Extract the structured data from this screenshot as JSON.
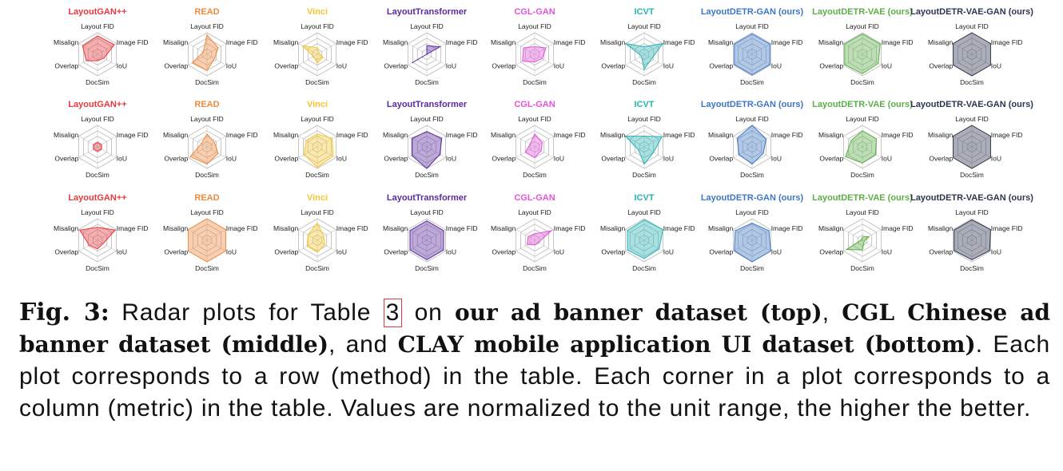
{
  "chart_data": {
    "type": "radar",
    "axes": [
      "Layout FID",
      "Image FID",
      "IoU",
      "DocSim",
      "Overlap",
      "Misalign"
    ],
    "value_range": [
      0,
      1
    ],
    "methods": [
      {
        "name": "LayoutGAN++",
        "color": "#e8383d"
      },
      {
        "name": "READ",
        "color": "#ee8a3c"
      },
      {
        "name": "Vinci",
        "color": "#f3c531"
      },
      {
        "name": "LayoutTransformer",
        "color": "#5a2aa0"
      },
      {
        "name": "CGL-GAN",
        "color": "#e254d8"
      },
      {
        "name": "ICVT",
        "color": "#28b3b6"
      },
      {
        "name": "LayoutDETR-GAN (ours)",
        "color": "#3d76c4"
      },
      {
        "name": "LayoutDETR-VAE (ours)",
        "color": "#5cae47"
      },
      {
        "name": "LayoutDETR-VAE-GAN (ours)",
        "color": "#2e3450"
      }
    ],
    "rows": [
      {
        "dataset": "our ad banner dataset",
        "values": [
          [
            0.85,
            0.9,
            0.35,
            0.3,
            0.6,
            0.8
          ],
          [
            0.9,
            0.6,
            0.4,
            0.75,
            0.8,
            0.2
          ],
          [
            0.3,
            0.1,
            0.3,
            0.4,
            0.2,
            0.8
          ],
          [
            0.4,
            0.7,
            0.0,
            0.0,
            0.8,
            0.0
          ],
          [
            0.35,
            0.6,
            0.4,
            0.35,
            0.65,
            0.6
          ],
          [
            0.35,
            1.0,
            0.4,
            0.7,
            0.15,
            1.0
          ],
          [
            0.95,
            0.95,
            0.95,
            0.95,
            0.95,
            0.95
          ],
          [
            0.95,
            0.95,
            0.85,
            0.9,
            0.95,
            0.95
          ],
          [
            1.0,
            1.0,
            1.0,
            1.0,
            1.0,
            1.0
          ]
        ]
      },
      {
        "dataset": "CGL Chinese ad banner dataset",
        "values": [
          [
            0.2,
            0.2,
            0.2,
            0.2,
            0.2,
            0.2
          ],
          [
            0.6,
            0.4,
            0.6,
            0.8,
            0.9,
            0.3
          ],
          [
            0.6,
            0.8,
            0.85,
            0.95,
            0.7,
            0.6
          ],
          [
            0.7,
            0.8,
            0.7,
            1.0,
            0.8,
            0.8
          ],
          [
            0.6,
            0.4,
            0.35,
            0.5,
            0.5,
            0.25
          ],
          [
            0.5,
            0.95,
            0.5,
            0.8,
            0.3,
            1.0
          ],
          [
            1.0,
            0.75,
            0.6,
            0.8,
            0.7,
            0.8
          ],
          [
            0.75,
            0.75,
            0.7,
            0.75,
            0.9,
            0.6
          ],
          [
            1.0,
            1.0,
            1.0,
            1.0,
            1.0,
            1.0
          ]
        ]
      },
      {
        "dataset": "CLAY mobile application UI dataset",
        "values": [
          [
            0.6,
            0.95,
            0.3,
            0.4,
            0.45,
            0.95
          ],
          [
            1.0,
            1.0,
            1.0,
            1.0,
            1.0,
            1.0
          ],
          [
            0.8,
            0.35,
            0.4,
            0.55,
            0.55,
            0.5
          ],
          [
            0.9,
            0.9,
            0.9,
            0.9,
            0.9,
            0.9
          ],
          [
            0.3,
            0.9,
            0.2,
            0.2,
            0.4,
            0.35
          ],
          [
            0.95,
            1.0,
            0.8,
            0.85,
            0.9,
            0.9
          ],
          [
            0.8,
            0.9,
            1.0,
            1.0,
            0.95,
            0.9
          ],
          [
            0.15,
            0.35,
            0.1,
            0.45,
            0.85,
            0.05
          ],
          [
            0.95,
            1.0,
            0.95,
            0.9,
            0.95,
            0.95
          ]
        ]
      }
    ]
  },
  "caption": {
    "label": "Fig. 3:",
    "t1": " Radar plots for Table ",
    "ref": "3",
    "t2": " on ",
    "b1": "our ad banner dataset (top)",
    "t3": ", ",
    "b2": "CGL Chinese ad banner dataset (middle)",
    "t4": ", and ",
    "b3": "CLAY mobile application UI dataset (bottom)",
    "t5": ". Each plot corresponds to a row (method) in the table. Each corner in a plot corresponds to a column (metric) in the table. Values are normalized to the unit range, the higher the better."
  }
}
